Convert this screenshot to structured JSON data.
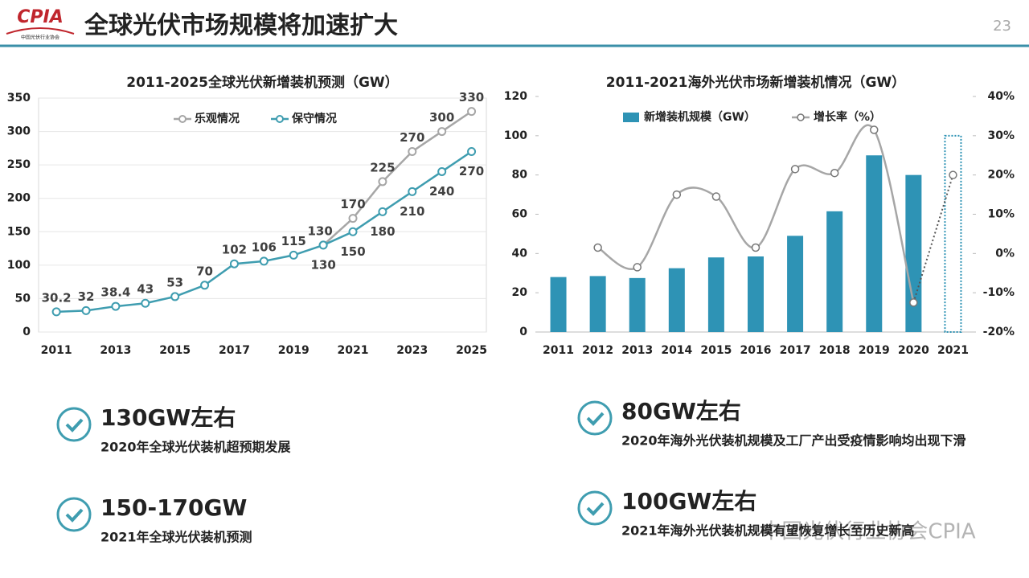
{
  "header": {
    "logo": "CPIA",
    "logo_sub": "中国光伏行业协会",
    "title": "全球光伏市场规模将加速扩大",
    "page": "23"
  },
  "chart_data": [
    {
      "type": "line",
      "title": "2011-2025全球光伏新增装机预测（GW）",
      "x": [
        2011,
        2012,
        2013,
        2014,
        2015,
        2016,
        2017,
        2018,
        2019,
        2020,
        2021,
        2022,
        2023,
        2024,
        2025
      ],
      "xlim": [
        2010.4,
        2025.5
      ],
      "xticks": [
        2011,
        2013,
        2015,
        2017,
        2019,
        2021,
        2023,
        2025
      ],
      "ylim": [
        0,
        350
      ],
      "yticks": [
        0,
        50,
        100,
        150,
        200,
        250,
        300,
        350
      ],
      "grid": true,
      "series": [
        {
          "name": "乐观情况",
          "color": "#a6a6a6",
          "values": [
            null,
            null,
            null,
            null,
            null,
            null,
            null,
            null,
            null,
            130,
            170,
            225,
            270,
            300,
            330
          ]
        },
        {
          "name": "保守情况",
          "color": "#3f9db0",
          "values": [
            30.2,
            32,
            38.4,
            43,
            53,
            70,
            102,
            106,
            115,
            130,
            150,
            180,
            210,
            240,
            270
          ]
        }
      ]
    },
    {
      "type": "bar_line",
      "title": "2011-2021海外光伏市场新增装机情况（GW）",
      "categories": [
        "2011",
        "2012",
        "2013",
        "2014",
        "2015",
        "2016",
        "2017",
        "2018",
        "2019",
        "2020",
        "2021"
      ],
      "ylim": [
        0,
        120
      ],
      "yticks": [
        0,
        20,
        40,
        60,
        80,
        100,
        120
      ],
      "y2lim": [
        -20,
        40
      ],
      "y2ticks": [
        {
          "value": -20,
          "label": "-20%"
        },
        {
          "value": -10,
          "label": "-10%"
        },
        {
          "value": 0,
          "label": "0%"
        },
        {
          "value": 10,
          "label": "10%"
        },
        {
          "value": 20,
          "label": "20%"
        },
        {
          "value": 30,
          "label": "30%"
        },
        {
          "value": 40,
          "label": "40%"
        }
      ],
      "series": [
        {
          "name": "新增装机规模（GW）",
          "type": "bar",
          "color": "#2e93b5",
          "values": [
            28,
            28.5,
            27.5,
            32.5,
            38,
            38.5,
            49,
            61.5,
            90,
            80,
            100
          ]
        },
        {
          "name": "增长率（%）",
          "type": "line",
          "axis": "y2",
          "color": "#a6a6a6",
          "values": [
            null,
            1.5,
            -3.5,
            15,
            14.5,
            1.5,
            21.5,
            20.5,
            31.5,
            -12.5,
            20
          ]
        }
      ]
    }
  ],
  "bullets": [
    {
      "heading": "130GW左右",
      "text": "2020年全球光伏装机超预期发展"
    },
    {
      "heading": "80GW左右",
      "text": "2020年海外光伏装机规模及工厂产出受疫情影响均出现下滑"
    },
    {
      "heading": "150-170GW",
      "text": "2021年全球光伏装机预测"
    },
    {
      "heading": "100GW左右",
      "text": "2021年海外光伏装机规模有望恢复增长至历史新高"
    }
  ],
  "watermark": "中国光伏行业协会CPIA"
}
